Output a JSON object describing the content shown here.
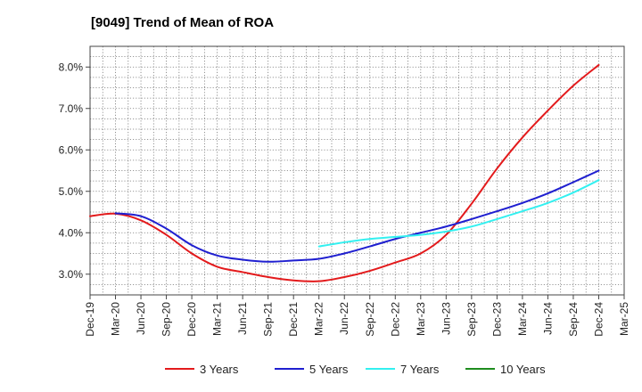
{
  "chart_data": {
    "type": "line",
    "title": "[9049]  Trend of Mean of ROA",
    "xlabel": "",
    "ylabel": "",
    "x": [
      "Dec-19",
      "Mar-20",
      "Jun-20",
      "Sep-20",
      "Dec-20",
      "Mar-21",
      "Jun-21",
      "Sep-21",
      "Dec-21",
      "Mar-22",
      "Jun-22",
      "Sep-22",
      "Dec-22",
      "Mar-23",
      "Jun-23",
      "Sep-23",
      "Dec-23",
      "Mar-24",
      "Jun-24",
      "Sep-24",
      "Dec-24",
      "Mar-25"
    ],
    "ylim": [
      2.5,
      8.5
    ],
    "yticks": [
      3.0,
      4.0,
      5.0,
      6.0,
      7.0,
      8.0
    ],
    "ytick_labels": [
      "3.0%",
      "4.0%",
      "5.0%",
      "6.0%",
      "7.0%",
      "8.0%"
    ],
    "grid": true,
    "legend": "bottom",
    "series": [
      {
        "name": "3 Years",
        "color": "#e31a1c",
        "values": [
          4.4,
          4.46,
          4.3,
          3.95,
          3.5,
          3.18,
          3.05,
          2.93,
          2.85,
          2.83,
          2.93,
          3.08,
          3.28,
          3.5,
          3.95,
          4.7,
          5.55,
          6.3,
          6.95,
          7.55,
          8.05,
          null
        ]
      },
      {
        "name": "5 Years",
        "color": "#1f1fd0",
        "values": [
          null,
          4.47,
          4.4,
          4.1,
          3.7,
          3.45,
          3.35,
          3.3,
          3.33,
          3.37,
          3.5,
          3.67,
          3.85,
          4.0,
          4.15,
          4.33,
          4.52,
          4.72,
          4.95,
          5.22,
          5.5,
          null
        ]
      },
      {
        "name": "7 Years",
        "color": "#33f0f0",
        "values": [
          null,
          null,
          null,
          null,
          null,
          null,
          null,
          null,
          null,
          3.67,
          3.77,
          3.85,
          3.9,
          3.95,
          4.03,
          4.15,
          4.33,
          4.52,
          4.72,
          4.97,
          5.27,
          null
        ]
      },
      {
        "name": "10 Years",
        "color": "#1e8c1e",
        "values": [
          null,
          null,
          null,
          null,
          null,
          null,
          null,
          null,
          null,
          null,
          null,
          null,
          null,
          null,
          null,
          null,
          null,
          null,
          null,
          null,
          null,
          null
        ]
      }
    ]
  }
}
